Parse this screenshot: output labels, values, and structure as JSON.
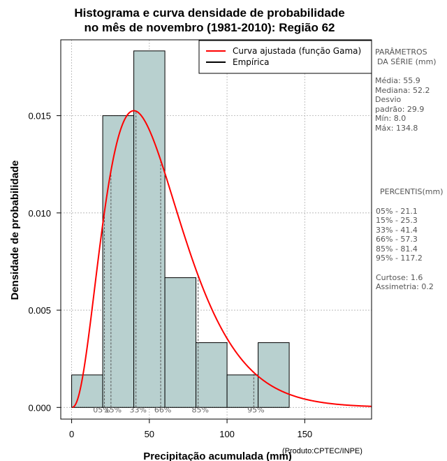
{
  "chart_data": {
    "type": "bar",
    "title": [
      "Histograma e curva densidade de probabilidade",
      "no mês de novembro (1981-2010): Região 62"
    ],
    "xlabel": "Precipitação acumulada (mm)",
    "ylabel": "Densidade de probabilidade",
    "xlim": [
      -7,
      193
    ],
    "ylim": [
      -0.0006,
      0.0189
    ],
    "xticks": [
      0,
      50,
      100,
      150
    ],
    "yticks": [
      0.0,
      0.005,
      0.01,
      0.015
    ],
    "ytick_labels": [
      "0.000",
      "0.005",
      "0.010",
      "0.015"
    ],
    "grid": true,
    "bins": [
      {
        "start": 0,
        "end": 20,
        "density": 0.00167
      },
      {
        "start": 20,
        "end": 40,
        "density": 0.015
      },
      {
        "start": 40,
        "end": 60,
        "density": 0.01833
      },
      {
        "start": 60,
        "end": 80,
        "density": 0.00667
      },
      {
        "start": 80,
        "end": 100,
        "density": 0.00333
      },
      {
        "start": 100,
        "end": 120,
        "density": 0.00167
      },
      {
        "start": 120,
        "end": 140,
        "density": 0.00333
      }
    ],
    "gamma_fit": {
      "shape": 3.5,
      "scale": 16.0
    },
    "percentile_markers": [
      {
        "label": "05%",
        "value": 21.1
      },
      {
        "label": "15%",
        "value": 25.3
      },
      {
        "label": "33%",
        "value": 41.4
      },
      {
        "label": "66%",
        "value": 57.3
      },
      {
        "label": "85%",
        "value": 81.4
      },
      {
        "label": "95%",
        "value": 117.2
      }
    ],
    "legend": [
      {
        "label": "Curva ajustada (função Gama)",
        "color": "#ff0000"
      },
      {
        "label": "Empírica",
        "color": "#000000"
      }
    ],
    "legend_position": "top-right",
    "colors": {
      "bar_fill": "#b8d0cf",
      "bar_stroke": "#000000",
      "curve": "#ff0000",
      "grid": "#b0b0b0",
      "percentile_line": "#555555"
    }
  },
  "stats_panel": {
    "heading_line1": "PARÂMETROS",
    "heading_line2": "DA SÉRIE (mm)",
    "media": "Média:  55.9",
    "mediana": "Mediana:  52.2",
    "desvio_line1": "Desvio",
    "desvio_line2": "padrão:  29.9",
    "min": "Mín:  8.0",
    "max": "Máx:  134.8"
  },
  "percentile_panel": {
    "heading": "PERCENTIS(mm)",
    "p05": "05% -  21.1",
    "p15": "15% -  25.3",
    "p33": "33% -  41.4",
    "p66": "66% -  57.3",
    "p85": "85% -  81.4",
    "p95": "95% -  117.2",
    "curtose": "Curtose:  1.6",
    "assimetria": "Assimetria:  0.2"
  },
  "credit": "(Produto:CPTEC/INPE)"
}
